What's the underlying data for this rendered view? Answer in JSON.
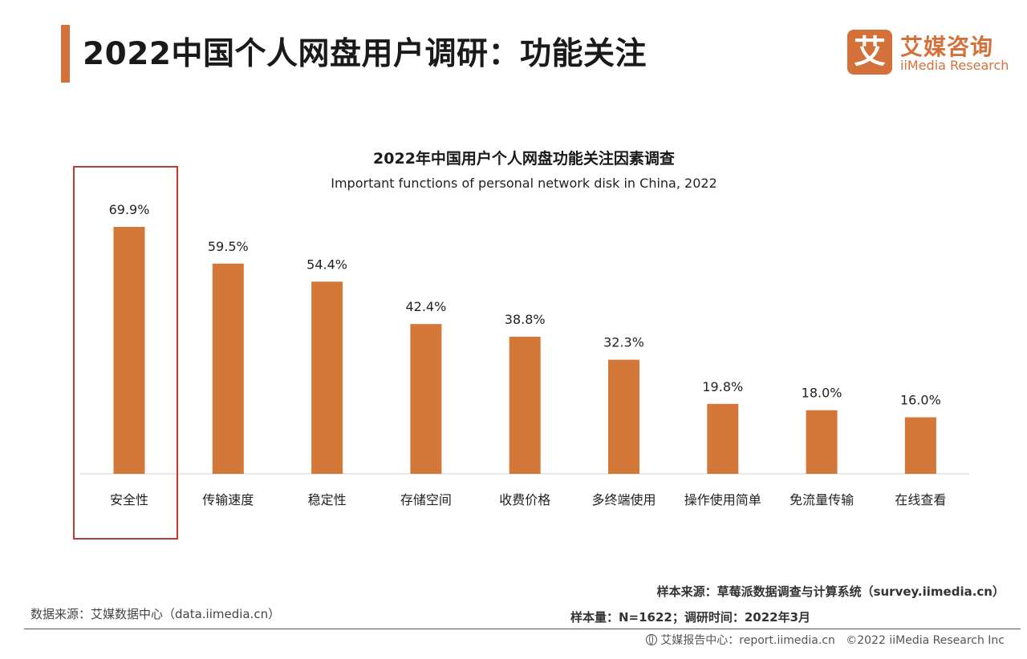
{
  "page": {
    "title": "2022中国个人网盘用户调研：功能关注"
  },
  "logo": {
    "mark": "艾",
    "cn": "艾媒咨询",
    "en": "iiMedia Research"
  },
  "colors": {
    "accent": "#d4703a",
    "bar": "#d4783a",
    "highlight_box": "#c0392b"
  },
  "chart_data": {
    "type": "bar",
    "title": "2022年中国用户个人网盘功能关注因素调查",
    "subtitle": "Important functions of personal network disk in China, 2022",
    "categories": [
      "安全性",
      "传输速度",
      "稳定性",
      "存储空间",
      "收费价格",
      "多终端使用",
      "操作使用简单",
      "免流量传输",
      "在线查看"
    ],
    "values": [
      69.9,
      59.5,
      54.4,
      42.4,
      38.8,
      32.3,
      19.8,
      18.0,
      16.0
    ],
    "value_labels": [
      "69.9%",
      "59.5%",
      "54.4%",
      "42.4%",
      "38.8%",
      "32.3%",
      "19.8%",
      "18.0%",
      "16.0%"
    ],
    "unit": "%",
    "ylim": [
      0,
      69.9
    ],
    "grid": false,
    "highlighted_category": "安全性"
  },
  "footer": {
    "data_source": "数据来源：艾媒数据中心（data.iimedia.cn）",
    "sample_source": "样本来源：草莓派数据调查与计算系统（survey.iimedia.cn）",
    "sample_size": "样本量：N=1622；调研时间：2022年3月",
    "report_center": "艾媒报告中心：report.iimedia.cn",
    "copyright": "©2022 iiMedia Research Inc"
  }
}
